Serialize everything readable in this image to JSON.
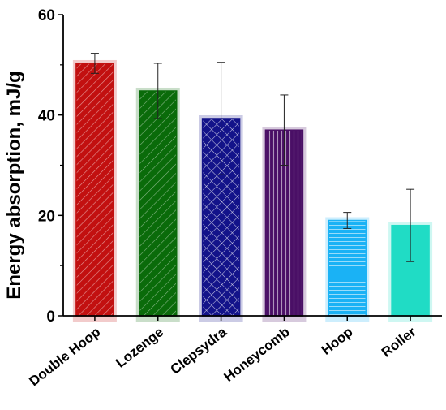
{
  "chart_data": {
    "type": "bar",
    "title": "",
    "xlabel": "",
    "ylabel": "Energy absorption, mJ/g",
    "ylim": [
      0,
      60
    ],
    "yticks": [
      0,
      20,
      40,
      60
    ],
    "grid": false,
    "categories": [
      "Double Hoop",
      "Lozenge",
      "Clepsydra",
      "Honeycomb",
      "Hoop",
      "Roller"
    ],
    "values": [
      50.3,
      44.8,
      39.3,
      37.0,
      19.0,
      18.0
    ],
    "errors": [
      2.0,
      5.5,
      11.2,
      7.0,
      1.6,
      7.2
    ],
    "colors": [
      "#c21010",
      "#0a6b0a",
      "#13138a",
      "#4a0f66",
      "#1ab2f5",
      "#20dcc5"
    ],
    "patterns": [
      "diagonal-dense",
      "diagonal",
      "crosshatch",
      "vertical",
      "horizontal",
      "none"
    ]
  }
}
